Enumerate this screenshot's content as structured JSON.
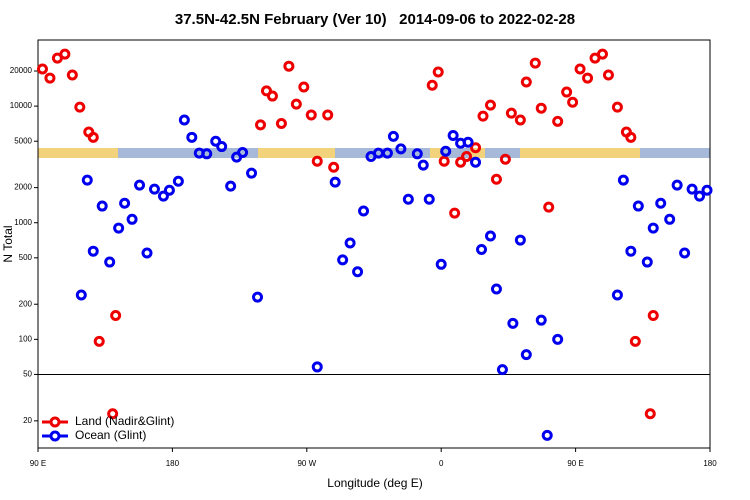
{
  "chart_data": {
    "type": "scatter",
    "title": "37.5N-42.5N February (Ver 10)   2014-09-06 to 2022-02-28",
    "x_label": "Longitude (deg E)",
    "y_label": "N Total",
    "xlim": [
      90,
      540
    ],
    "xticks": [
      {
        "value": 90,
        "label": "90 E"
      },
      {
        "value": 180,
        "label": "180"
      },
      {
        "value": 270,
        "label": "90 W"
      },
      {
        "value": 360,
        "label": "0"
      },
      {
        "value": 450,
        "label": "90 E"
      },
      {
        "value": 540,
        "label": "180"
      }
    ],
    "ylim": [
      11.7,
      36900
    ],
    "log_y": true,
    "yticks": [
      20,
      50,
      100,
      200,
      500,
      1000,
      2000,
      5000,
      10000,
      20000
    ],
    "hline": 50,
    "legend": "lower left",
    "series": [
      {
        "name": "Land (Nadir&Glint)",
        "color": "#ee0000",
        "x": [
          93,
          98,
          103,
          108,
          113,
          118,
          124,
          127,
          131,
          140,
          142,
          239,
          243,
          247,
          253,
          258,
          263,
          268,
          273,
          277,
          284,
          288,
          354,
          358,
          362,
          369,
          373,
          377,
          383,
          388,
          393,
          397,
          403,
          407,
          413,
          417,
          423,
          427,
          432,
          438,
          444,
          448,
          453,
          458,
          463,
          468,
          472,
          478,
          484,
          487,
          490,
          500,
          502
        ],
        "values": [
          20800,
          17400,
          25800,
          27900,
          18500,
          9800,
          6000,
          5400,
          96,
          23,
          160,
          6900,
          13500,
          12200,
          7100,
          22000,
          10400,
          14600,
          8400,
          3370,
          8400,
          2990,
          15100,
          19600,
          3370,
          1210,
          3300,
          3700,
          4400,
          8200,
          10200,
          2360,
          3500,
          8700,
          7600,
          16100,
          23400,
          9600,
          1360,
          7400,
          13200,
          10800,
          20800,
          17400,
          25800,
          27900,
          18500,
          9800,
          6000,
          5400,
          96,
          23,
          160
        ]
      },
      {
        "name": "Ocean (Glint)",
        "color": "#0000ee",
        "x": [
          119,
          123,
          127,
          133,
          138,
          144,
          148,
          153,
          158,
          163,
          168,
          174,
          178,
          184,
          188,
          193,
          198,
          203,
          209,
          213,
          219,
          223,
          227,
          233,
          237,
          277,
          289,
          294,
          299,
          304,
          308,
          313,
          318,
          324,
          328,
          333,
          338,
          344,
          348,
          352,
          360,
          363,
          368,
          373,
          378,
          383,
          387,
          393,
          397,
          401,
          408,
          413,
          417,
          427,
          431,
          438,
          478,
          482,
          487,
          492,
          498,
          502,
          507,
          513,
          518,
          523,
          528,
          533,
          538
        ],
        "values": [
          240,
          2320,
          570,
          1390,
          460,
          900,
          1470,
          1070,
          2100,
          550,
          1940,
          1690,
          1900,
          2270,
          7600,
          5400,
          3950,
          3900,
          5000,
          4500,
          2060,
          3650,
          4000,
          2660,
          230,
          58,
          2230,
          480,
          670,
          380,
          1260,
          3700,
          3950,
          3950,
          5500,
          4300,
          1590,
          3900,
          3120,
          1590,
          440,
          4100,
          5600,
          4800,
          4900,
          3300,
          590,
          770,
          270,
          55,
          137,
          710,
          74,
          146,
          15,
          100,
          240,
          2320,
          570,
          1390,
          460,
          900,
          1470,
          1070,
          2100,
          550,
          1940,
          1690,
          1900
        ]
      }
    ]
  }
}
